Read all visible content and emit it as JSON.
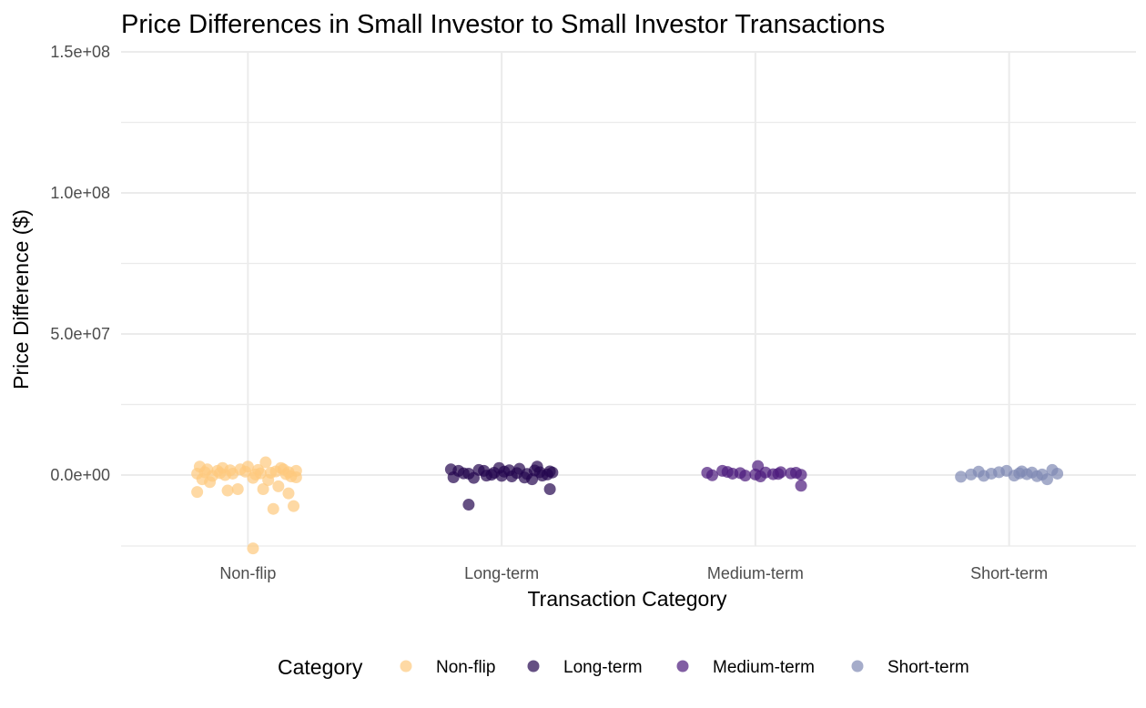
{
  "chart_data": {
    "type": "scatter",
    "title": "Price Differences in Small Investor to Small Investor Transactions",
    "xlabel": "Transaction Category",
    "ylabel": "Price Difference ($)",
    "categories": [
      "Non-flip",
      "Long-term",
      "Medium-term",
      "Short-term"
    ],
    "ylim": [
      -25000000,
      150000000
    ],
    "yticks": [
      0,
      50000000,
      100000000,
      150000000
    ],
    "ytick_labels": [
      "0.0e+00",
      "5.0e+07",
      "1.0e+08",
      "1.5e+08"
    ],
    "grid": true,
    "legend": {
      "title": "Category",
      "position": "bottom"
    },
    "series": [
      {
        "name": "Non-flip",
        "color": "#FDC97E",
        "points": [
          [
            -0.2,
            -6000000
          ],
          [
            0.02,
            -26000000
          ],
          [
            -0.08,
            -5500000
          ],
          [
            0.1,
            -12000000
          ],
          [
            0.18,
            -11000000
          ],
          [
            0.06,
            -5000000
          ],
          [
            0.16,
            -6500000
          ],
          [
            -0.04,
            -5000000
          ],
          [
            0.12,
            -4000000
          ],
          [
            -0.15,
            -2500000
          ],
          [
            0.07,
            4500000
          ],
          [
            -0.19,
            3000000
          ],
          [
            -0.1,
            2500000
          ],
          [
            0.0,
            3000000
          ],
          [
            0.14,
            2000000
          ],
          [
            0.19,
            1500000
          ],
          [
            -0.17,
            1000000
          ],
          [
            -0.12,
            1500000
          ],
          [
            -0.06,
            500000
          ],
          [
            -0.01,
            1200000
          ],
          [
            0.04,
            1800000
          ],
          [
            0.09,
            800000
          ],
          [
            0.13,
            2500000
          ],
          [
            0.17,
            -500000
          ],
          [
            -0.2,
            500000
          ],
          [
            -0.14,
            -300000
          ],
          [
            -0.09,
            0
          ],
          [
            -0.03,
            2000000
          ],
          [
            0.02,
            -1000000
          ],
          [
            0.05,
            600000
          ],
          [
            0.11,
            1300000
          ],
          [
            0.15,
            300000
          ],
          [
            0.19,
            -800000
          ],
          [
            -0.18,
            -1500000
          ],
          [
            -0.07,
            1700000
          ],
          [
            0.08,
            -1800000
          ],
          [
            -0.11,
            700000
          ],
          [
            0.03,
            200000
          ],
          [
            -0.16,
            2000000
          ],
          [
            0.16,
            1000000
          ]
        ]
      },
      {
        "name": "Long-term",
        "color": "#24064F",
        "points": [
          [
            -0.13,
            -10500000
          ],
          [
            0.19,
            -5000000
          ],
          [
            0.14,
            3000000
          ],
          [
            -0.01,
            2500000
          ],
          [
            -0.2,
            2000000
          ],
          [
            -0.17,
            1500000
          ],
          [
            -0.13,
            500000
          ],
          [
            -0.09,
            1800000
          ],
          [
            -0.06,
            -200000
          ],
          [
            -0.03,
            800000
          ],
          [
            0.01,
            1200000
          ],
          [
            0.04,
            -500000
          ],
          [
            0.07,
            2200000
          ],
          [
            0.1,
            400000
          ],
          [
            0.12,
            -1500000
          ],
          [
            0.15,
            1000000
          ],
          [
            0.18,
            200000
          ],
          [
            0.2,
            900000
          ],
          [
            -0.19,
            -800000
          ],
          [
            -0.15,
            600000
          ],
          [
            -0.11,
            -1000000
          ],
          [
            -0.07,
            1500000
          ],
          [
            -0.04,
            100000
          ],
          [
            0.0,
            -300000
          ],
          [
            0.03,
            1700000
          ],
          [
            0.06,
            700000
          ],
          [
            0.09,
            -900000
          ],
          [
            0.13,
            1600000
          ],
          [
            0.16,
            -200000
          ],
          [
            0.19,
            1300000
          ]
        ]
      },
      {
        "name": "Medium-term",
        "color": "#4C1A7C",
        "points": [
          [
            0.18,
            -3800000
          ],
          [
            0.01,
            3200000
          ],
          [
            -0.19,
            800000
          ],
          [
            -0.13,
            1500000
          ],
          [
            -0.09,
            500000
          ],
          [
            -0.04,
            -200000
          ],
          [
            0.0,
            200000
          ],
          [
            0.04,
            900000
          ],
          [
            0.07,
            300000
          ],
          [
            0.1,
            1000000
          ],
          [
            0.14,
            600000
          ],
          [
            0.18,
            100000
          ],
          [
            -0.17,
            -100000
          ],
          [
            -0.11,
            1100000
          ],
          [
            -0.06,
            700000
          ],
          [
            0.02,
            -500000
          ],
          [
            0.09,
            400000
          ],
          [
            0.16,
            800000
          ]
        ]
      },
      {
        "name": "Short-term",
        "color": "#7F89B3",
        "points": [
          [
            -0.19,
            -600000
          ],
          [
            -0.15,
            200000
          ],
          [
            -0.12,
            1200000
          ],
          [
            -0.01,
            1500000
          ],
          [
            0.04,
            600000
          ],
          [
            0.09,
            900000
          ],
          [
            0.13,
            200000
          ],
          [
            0.17,
            1800000
          ],
          [
            0.19,
            500000
          ],
          [
            0.15,
            -1500000
          ],
          [
            0.07,
            300000
          ],
          [
            0.02,
            -200000
          ],
          [
            -0.07,
            500000
          ],
          [
            -0.04,
            1000000
          ],
          [
            0.11,
            -400000
          ],
          [
            -0.1,
            -300000
          ],
          [
            0.05,
            1300000
          ]
        ]
      }
    ]
  }
}
